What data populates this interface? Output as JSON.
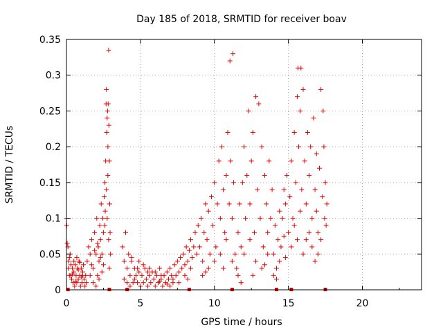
{
  "chart_data": {
    "type": "scatter",
    "title": "Day 185 of 2018, SRMTID for receiver boav",
    "xlabel": "GPS time / hours",
    "ylabel": "SRMTID / TECUs",
    "xlim": [
      0,
      24
    ],
    "ylim": [
      0,
      0.35
    ],
    "xticks": [
      0,
      5,
      10,
      15,
      20
    ],
    "yticks": [
      0,
      0.05,
      0.1,
      0.15,
      0.2,
      0.25,
      0.3,
      0.35
    ],
    "xtick_labels": [
      "0",
      "5",
      "10",
      "15",
      "20"
    ],
    "ytick_labels": [
      "0",
      "0.05",
      "0.1",
      "0.15",
      "0.2",
      "0.25",
      "0.3",
      "0.35"
    ],
    "grid": true,
    "marker": "+",
    "color": "#e00000",
    "series": [
      {
        "name": "SRMTID",
        "points": [
          [
            0.0,
            0.1
          ],
          [
            0.02,
            0.09
          ],
          [
            0.05,
            0.065
          ],
          [
            0.1,
            0.06
          ],
          [
            0.12,
            0.03
          ],
          [
            0.15,
            0.04
          ],
          [
            0.2,
            0.02
          ],
          [
            0.25,
            0.05
          ],
          [
            0.3,
            0.02
          ],
          [
            0.35,
            0.015
          ],
          [
            0.4,
            0.03
          ],
          [
            0.45,
            0.01
          ],
          [
            0.5,
            0.025
          ],
          [
            0.55,
            0.005
          ],
          [
            0.6,
            0.035
          ],
          [
            0.65,
            0.02
          ],
          [
            0.7,
            0.01
          ],
          [
            0.75,
            0.03
          ],
          [
            0.8,
            0.015
          ],
          [
            0.85,
            0.04
          ],
          [
            0.9,
            0.02
          ],
          [
            0.95,
            0.005
          ],
          [
            1.0,
            0.03
          ],
          [
            1.05,
            0.01
          ],
          [
            1.1,
            0.02
          ],
          [
            1.15,
            0.035
          ],
          [
            1.2,
            0.015
          ],
          [
            1.25,
            0.005
          ],
          [
            1.3,
            0.02
          ],
          [
            1.35,
            0.01
          ],
          [
            0.2,
            0.045
          ],
          [
            0.3,
            0.035
          ],
          [
            0.5,
            0.04
          ],
          [
            0.7,
            0.045
          ],
          [
            0.9,
            0.038
          ],
          [
            1.1,
            0.025
          ],
          [
            0.6,
            0.012
          ],
          [
            0.8,
            0.028
          ],
          [
            1.0,
            0.018
          ],
          [
            0.4,
            0.022
          ],
          [
            1.4,
            0.04
          ],
          [
            1.5,
            0.06
          ],
          [
            1.6,
            0.05
          ],
          [
            1.7,
            0.07
          ],
          [
            1.8,
            0.03
          ],
          [
            1.9,
            0.08
          ],
          [
            2.0,
            0.05
          ],
          [
            2.05,
            0.1
          ],
          [
            2.1,
            0.02
          ],
          [
            2.15,
            0.06
          ],
          [
            2.2,
            0.04
          ],
          [
            2.25,
            0.09
          ],
          [
            2.3,
            0.07
          ],
          [
            2.35,
            0.12
          ],
          [
            2.4,
            0.05
          ],
          [
            2.45,
            0.1
          ],
          [
            2.5,
            0.08
          ],
          [
            2.55,
            0.13
          ],
          [
            2.6,
            0.15
          ],
          [
            2.62,
            0.11
          ],
          [
            2.65,
            0.18
          ],
          [
            2.68,
            0.26
          ],
          [
            2.7,
            0.28
          ],
          [
            2.72,
            0.22
          ],
          [
            2.75,
            0.24
          ],
          [
            2.78,
            0.25
          ],
          [
            2.8,
            0.2
          ],
          [
            2.82,
            0.26
          ],
          [
            2.85,
            0.335
          ],
          [
            2.87,
            0.23
          ],
          [
            2.9,
            0.18
          ],
          [
            2.92,
            0.12
          ],
          [
            2.95,
            0.08
          ],
          [
            2.98,
            0.05
          ],
          [
            2.6,
            0.09
          ],
          [
            2.7,
            0.14
          ],
          [
            2.75,
            0.1
          ],
          [
            2.8,
            0.16
          ],
          [
            2.85,
            0.07
          ],
          [
            2.9,
            0.03
          ],
          [
            1.6,
            0.02
          ],
          [
            1.8,
            0.01
          ],
          [
            2.0,
            0.005
          ],
          [
            2.2,
            0.015
          ],
          [
            2.4,
            0.025
          ],
          [
            2.5,
            0.035
          ],
          [
            2.3,
            0.045
          ],
          [
            1.9,
            0.055
          ],
          [
            1.7,
            0.035
          ],
          [
            2.1,
            0.065
          ],
          [
            3.8,
            0.06
          ],
          [
            3.9,
            0.04
          ],
          [
            4.0,
            0.08
          ],
          [
            4.1,
            0.03
          ],
          [
            4.2,
            0.05
          ],
          [
            4.3,
            0.02
          ],
          [
            4.4,
            0.04
          ],
          [
            4.5,
            0.01
          ],
          [
            4.6,
            0.03
          ],
          [
            4.7,
            0.02
          ],
          [
            4.8,
            0.01
          ],
          [
            4.9,
            0.025
          ],
          [
            5.0,
            0.005
          ],
          [
            5.1,
            0.02
          ],
          [
            5.2,
            0.01
          ],
          [
            5.3,
            0.03
          ],
          [
            5.4,
            0.015
          ],
          [
            5.5,
            0.005
          ],
          [
            5.6,
            0.02
          ],
          [
            5.7,
            0.01
          ],
          [
            5.8,
            0.025
          ],
          [
            5.9,
            0.015
          ],
          [
            6.0,
            0.005
          ],
          [
            6.1,
            0.02
          ],
          [
            6.2,
            0.01
          ],
          [
            6.3,
            0.03
          ],
          [
            6.4,
            0.015
          ],
          [
            6.5,
            0.005
          ],
          [
            6.6,
            0.02
          ],
          [
            6.7,
            0.01
          ],
          [
            6.8,
            0.025
          ],
          [
            6.9,
            0.015
          ],
          [
            7.0,
            0.03
          ],
          [
            7.1,
            0.02
          ],
          [
            7.2,
            0.01
          ],
          [
            7.3,
            0.035
          ],
          [
            7.4,
            0.02
          ],
          [
            7.5,
            0.04
          ],
          [
            7.6,
            0.025
          ],
          [
            7.7,
            0.045
          ],
          [
            7.8,
            0.03
          ],
          [
            7.9,
            0.05
          ],
          [
            8.0,
            0.035
          ],
          [
            8.1,
            0.06
          ],
          [
            8.2,
            0.04
          ],
          [
            8.3,
            0.055
          ],
          [
            8.4,
            0.07
          ],
          [
            8.5,
            0.045
          ],
          [
            8.6,
            0.06
          ],
          [
            8.7,
            0.08
          ],
          [
            3.9,
            0.015
          ],
          [
            4.1,
            0.01
          ],
          [
            4.3,
            0.005
          ],
          [
            4.6,
            0.015
          ],
          [
            4.9,
            0.04
          ],
          [
            5.2,
            0.035
          ],
          [
            5.6,
            0.03
          ],
          [
            6.0,
            0.025
          ],
          [
            6.4,
            0.02
          ],
          [
            6.8,
            0.008
          ],
          [
            7.2,
            0.015
          ],
          [
            7.6,
            0.01
          ],
          [
            8.0,
            0.02
          ],
          [
            8.2,
            0.015
          ],
          [
            8.4,
            0.03
          ],
          [
            4.4,
            0.045
          ],
          [
            4.8,
            0.03
          ],
          [
            5.5,
            0.025
          ],
          [
            6.3,
            0.012
          ],
          [
            7.0,
            0.005
          ],
          [
            8.8,
            0.05
          ],
          [
            8.9,
            0.09
          ],
          [
            9.0,
            0.06
          ],
          [
            9.1,
            0.1
          ],
          [
            9.2,
            0.04
          ],
          [
            9.3,
            0.08
          ],
          [
            9.4,
            0.12
          ],
          [
            9.5,
            0.07
          ],
          [
            9.6,
            0.11
          ],
          [
            9.7,
            0.05
          ],
          [
            9.8,
            0.13
          ],
          [
            9.9,
            0.09
          ],
          [
            10.0,
            0.15
          ],
          [
            10.1,
            0.06
          ],
          [
            10.2,
            0.12
          ],
          [
            10.3,
            0.18
          ],
          [
            10.4,
            0.1
          ],
          [
            10.5,
            0.2
          ],
          [
            10.6,
            0.14
          ],
          [
            10.7,
            0.08
          ],
          [
            10.8,
            0.16
          ],
          [
            10.9,
            0.22
          ],
          [
            11.0,
            0.12
          ],
          [
            11.05,
            0.32
          ],
          [
            11.1,
            0.18
          ],
          [
            11.2,
            0.1
          ],
          [
            11.25,
            0.33
          ],
          [
            11.3,
            0.15
          ],
          [
            11.4,
            0.05
          ],
          [
            11.5,
            0.03
          ],
          [
            11.6,
            0.08
          ],
          [
            11.7,
            0.12
          ],
          [
            11.8,
            0.06
          ],
          [
            11.9,
            0.15
          ],
          [
            12.0,
            0.2
          ],
          [
            12.1,
            0.1
          ],
          [
            12.2,
            0.16
          ],
          [
            12.3,
            0.25
          ],
          [
            12.4,
            0.12
          ],
          [
            12.5,
            0.18
          ],
          [
            12.6,
            0.22
          ],
          [
            12.7,
            0.08
          ],
          [
            12.8,
            0.27
          ],
          [
            12.9,
            0.14
          ],
          [
            13.0,
            0.26
          ],
          [
            13.1,
            0.1
          ],
          [
            13.2,
            0.2
          ],
          [
            13.3,
            0.06
          ],
          [
            13.4,
            0.16
          ],
          [
            13.5,
            0.12
          ],
          [
            13.6,
            0.08
          ],
          [
            13.7,
            0.18
          ],
          [
            13.8,
            0.1
          ],
          [
            13.9,
            0.14
          ],
          [
            14.0,
            0.05
          ],
          [
            14.1,
            0.09
          ],
          [
            14.2,
            0.03
          ],
          [
            14.3,
            0.07
          ],
          [
            14.4,
            0.11
          ],
          [
            14.5,
            0.06
          ],
          [
            9.2,
            0.02
          ],
          [
            9.6,
            0.03
          ],
          [
            10.0,
            0.04
          ],
          [
            10.4,
            0.05
          ],
          [
            10.8,
            0.07
          ],
          [
            11.2,
            0.04
          ],
          [
            11.6,
            0.02
          ],
          [
            12.0,
            0.05
          ],
          [
            12.4,
            0.07
          ],
          [
            12.8,
            0.04
          ],
          [
            13.2,
            0.03
          ],
          [
            13.6,
            0.05
          ],
          [
            14.0,
            0.02
          ],
          [
            14.4,
            0.04
          ],
          [
            9.4,
            0.025
          ],
          [
            10.6,
            0.03
          ],
          [
            11.8,
            0.01
          ],
          [
            12.6,
            0.02
          ],
          [
            13.4,
            0.035
          ],
          [
            14.2,
            0.015
          ],
          [
            14.6,
            0.1
          ],
          [
            14.7,
            0.14
          ],
          [
            14.8,
            0.12
          ],
          [
            14.9,
            0.16
          ],
          [
            15.0,
            0.08
          ],
          [
            15.1,
            0.13
          ],
          [
            15.2,
            0.18
          ],
          [
            15.3,
            0.1
          ],
          [
            15.4,
            0.22
          ],
          [
            15.5,
            0.15
          ],
          [
            15.6,
            0.27
          ],
          [
            15.65,
            0.31
          ],
          [
            15.7,
            0.2
          ],
          [
            15.8,
            0.25
          ],
          [
            15.85,
            0.31
          ],
          [
            15.9,
            0.14
          ],
          [
            16.0,
            0.28
          ],
          [
            16.1,
            0.18
          ],
          [
            16.2,
            0.12
          ],
          [
            16.3,
            0.22
          ],
          [
            16.4,
            0.16
          ],
          [
            16.5,
            0.2
          ],
          [
            16.6,
            0.1
          ],
          [
            16.7,
            0.24
          ],
          [
            16.8,
            0.14
          ],
          [
            16.9,
            0.19
          ],
          [
            17.0,
            0.08
          ],
          [
            17.1,
            0.17
          ],
          [
            17.2,
            0.28
          ],
          [
            17.3,
            0.13
          ],
          [
            17.35,
            0.25
          ],
          [
            17.4,
            0.2
          ],
          [
            17.45,
            0.1
          ],
          [
            17.5,
            0.15
          ],
          [
            17.55,
            0.09
          ],
          [
            17.6,
            0.12
          ],
          [
            15.2,
            0.06
          ],
          [
            15.6,
            0.07
          ],
          [
            16.0,
            0.05
          ],
          [
            16.4,
            0.08
          ],
          [
            16.8,
            0.04
          ],
          [
            17.0,
            0.05
          ],
          [
            14.8,
            0.045
          ],
          [
            15.4,
            0.09
          ],
          [
            16.2,
            0.07
          ],
          [
            16.6,
            0.06
          ],
          [
            17.2,
            0.07
          ],
          [
            15.8,
            0.11
          ],
          [
            16.9,
            0.11
          ],
          [
            14.7,
            0.075
          ]
        ]
      }
    ],
    "baseline_marks_x": [
      0.1,
      2.9,
      4.1,
      8.3,
      11.2,
      14.2,
      15.2,
      17.5
    ]
  }
}
